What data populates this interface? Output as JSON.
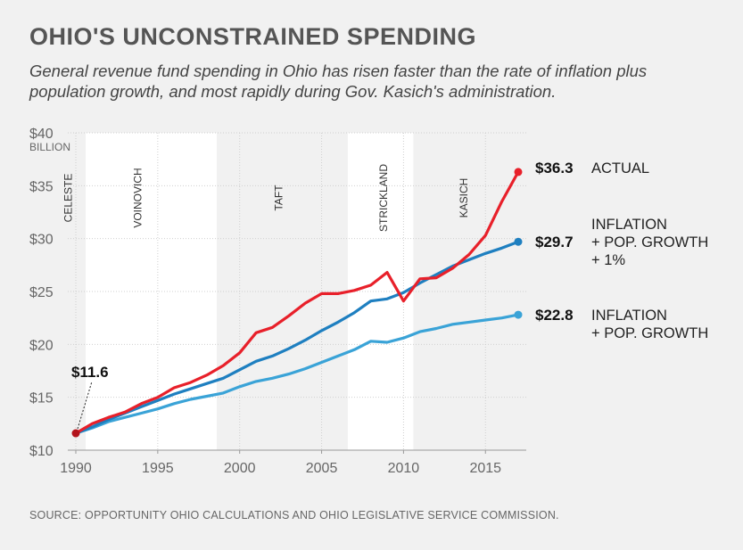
{
  "header": {
    "title": "OHIO'S UNCONSTRAINED SPENDING",
    "subtitle": "General revenue fund spending in Ohio has risen faster than the rate of inflation plus population growth, and most rapidly during Gov. Kasich's administration."
  },
  "source": "SOURCE: OPPORTUNITY OHIO CALCULATIONS AND OHIO LEGISLATIVE SERVICE COMMISSION.",
  "chart_data": {
    "type": "line",
    "title": "OHIO'S UNCONSTRAINED SPENDING",
    "x": [
      1990,
      1991,
      1992,
      1993,
      1994,
      1995,
      1996,
      1997,
      1998,
      1999,
      2000,
      2001,
      2002,
      2003,
      2004,
      2005,
      2006,
      2007,
      2008,
      2009,
      2010,
      2011,
      2012,
      2013,
      2014,
      2015,
      2016,
      2017
    ],
    "series": [
      {
        "key": "actual",
        "color": "#e8202a",
        "values": [
          11.6,
          12.5,
          13.1,
          13.6,
          14.4,
          15.0,
          15.9,
          16.4,
          17.1,
          18.0,
          19.2,
          21.1,
          21.6,
          22.7,
          23.9,
          24.8,
          24.8,
          25.1,
          25.6,
          26.8,
          24.1,
          26.2,
          26.3,
          27.2,
          28.5,
          30.3,
          33.5,
          36.3
        ]
      },
      {
        "key": "inflation_pop_1pct",
        "color": "#1e7fc0",
        "values": [
          11.6,
          12.2,
          12.9,
          13.5,
          14.1,
          14.7,
          15.3,
          15.8,
          16.3,
          16.8,
          17.6,
          18.4,
          18.9,
          19.6,
          20.4,
          21.3,
          22.1,
          23.0,
          24.1,
          24.3,
          24.9,
          25.8,
          26.6,
          27.4,
          28.0,
          28.6,
          29.1,
          29.7
        ]
      },
      {
        "key": "inflation_pop",
        "color": "#3aa3d7",
        "values": [
          11.6,
          12.1,
          12.7,
          13.1,
          13.5,
          13.9,
          14.4,
          14.8,
          15.1,
          15.4,
          16.0,
          16.5,
          16.8,
          17.2,
          17.7,
          18.3,
          18.9,
          19.5,
          20.3,
          20.2,
          20.6,
          21.2,
          21.5,
          21.9,
          22.1,
          22.3,
          22.5,
          22.8
        ]
      }
    ],
    "end_labels": [
      {
        "series": "actual",
        "value": "$36.3",
        "lines": [
          "ACTUAL"
        ]
      },
      {
        "series": "inflation_pop_1pct",
        "value": "$29.7",
        "lines": [
          "INFLATION",
          "+ POP. GROWTH",
          "+ 1%"
        ]
      },
      {
        "series": "inflation_pop",
        "value": "$22.8",
        "lines": [
          "INFLATION",
          "+ POP. GROWTH"
        ]
      }
    ],
    "start_annotation": "$11.6",
    "xlim": [
      1990,
      2017
    ],
    "ylim": [
      10,
      40
    ],
    "x_ticks": [
      1990,
      1995,
      2000,
      2005,
      2010,
      2015
    ],
    "y_ticks": [
      {
        "value": 10,
        "label": "$10"
      },
      {
        "value": 15,
        "label": "$15"
      },
      {
        "value": 20,
        "label": "$20"
      },
      {
        "value": 25,
        "label": "$25"
      },
      {
        "value": 30,
        "label": "$30"
      },
      {
        "value": 35,
        "label": "$35"
      },
      {
        "value": 40,
        "label": "$40"
      }
    ],
    "y_unit": "BILLION",
    "grid": true,
    "eras": [
      {
        "name": "CELESTE",
        "start": 1989.8,
        "end": 1990.6,
        "shaded": false
      },
      {
        "name": "VOINOVICH",
        "start": 1990.6,
        "end": 1998.6,
        "shaded": true
      },
      {
        "name": "TAFT",
        "start": 1998.6,
        "end": 2006.6,
        "shaded": false
      },
      {
        "name": "STRICKLAND",
        "start": 2006.6,
        "end": 2010.6,
        "shaded": true
      },
      {
        "name": "KASICH",
        "start": 2010.6,
        "end": 2017.2,
        "shaded": false
      }
    ]
  }
}
